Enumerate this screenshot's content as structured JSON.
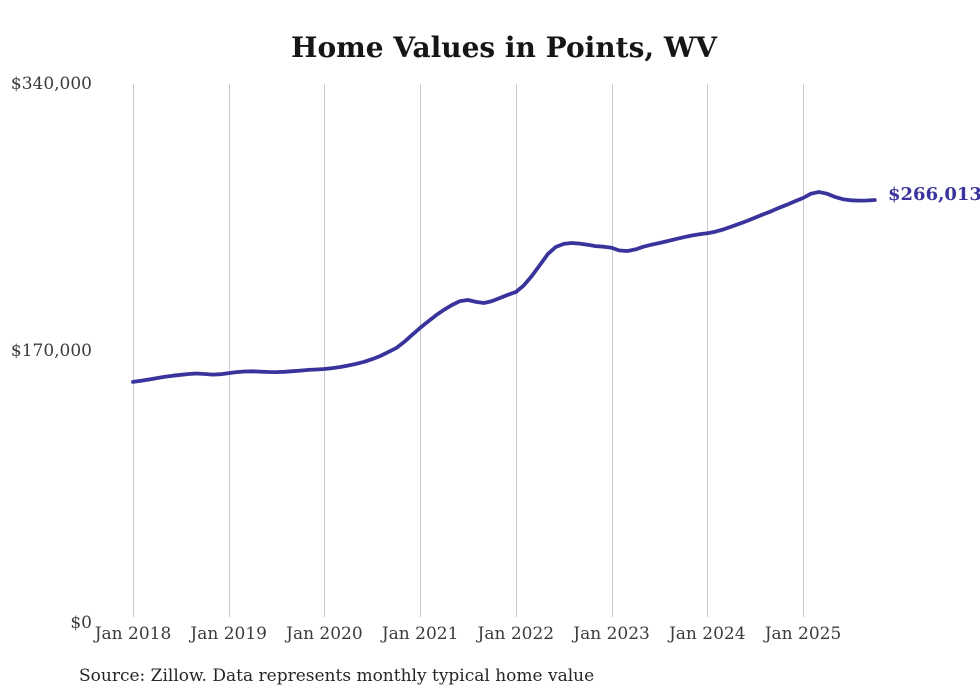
{
  "title": "Home Values in Points, WV",
  "end_label": "$266,013",
  "source_note": "Source: Zillow. Data represents monthly typical home value",
  "colors": {
    "line": "#39339c",
    "grid": "#cbcbcb",
    "title_text": "#161616",
    "axis_text": "#3c3c3c",
    "source_text": "#262626",
    "background": "#ffffff"
  },
  "chart_data": {
    "type": "line",
    "title": "Home Values in Points, WV",
    "xlabel": "",
    "ylabel": "",
    "ylim": [
      0,
      340000
    ],
    "grid": "vertical-only",
    "legend": "none",
    "x_unit": "month",
    "x_range": [
      "Jan 2018",
      "Oct 2025"
    ],
    "y_ticks": [
      {
        "label": "$340,000",
        "value": 340000
      },
      {
        "label": "$170,000",
        "value": 170000
      },
      {
        "label": "$0",
        "value": 0
      }
    ],
    "x_ticks": [
      {
        "label": "Jan 2018",
        "month_index": 0
      },
      {
        "label": "Jan 2019",
        "month_index": 12
      },
      {
        "label": "Jan 2020",
        "month_index": 24
      },
      {
        "label": "Jan 2021",
        "month_index": 36
      },
      {
        "label": "Jan 2022",
        "month_index": 48
      },
      {
        "label": "Jan 2023",
        "month_index": 60
      },
      {
        "label": "Jan 2024",
        "month_index": 72
      },
      {
        "label": "Jan 2025",
        "month_index": 84
      }
    ],
    "series": [
      {
        "name": "Typical home value",
        "start_month": "2018-01",
        "cadence": "monthly",
        "final_value": 266013,
        "final_value_label": "$266,013",
        "values": [
          150000,
          150700,
          151500,
          152400,
          153200,
          153900,
          154500,
          155000,
          155300,
          155000,
          154600,
          154900,
          155600,
          156200,
          156600,
          156700,
          156500,
          156300,
          156200,
          156400,
          156800,
          157200,
          157600,
          157900,
          158200,
          158800,
          159500,
          160400,
          161500,
          162800,
          164500,
          166500,
          169000,
          171500,
          175500,
          180000,
          184400,
          188500,
          192500,
          196000,
          199000,
          201500,
          202200,
          201000,
          200300,
          201500,
          203500,
          205500,
          207300,
          211500,
          217500,
          224500,
          231500,
          236000,
          238000,
          238600,
          238200,
          237400,
          236600,
          236200,
          235500,
          233800,
          233500,
          234500,
          236200,
          237500,
          238600,
          239800,
          241000,
          242200,
          243300,
          244100,
          244800,
          245800,
          247200,
          249000,
          250800,
          252700,
          254800,
          256800,
          258800,
          261000,
          263000,
          265200,
          267300,
          270000,
          271100,
          270000,
          268000,
          266500,
          265800,
          265600,
          265700,
          266013
        ]
      }
    ]
  }
}
